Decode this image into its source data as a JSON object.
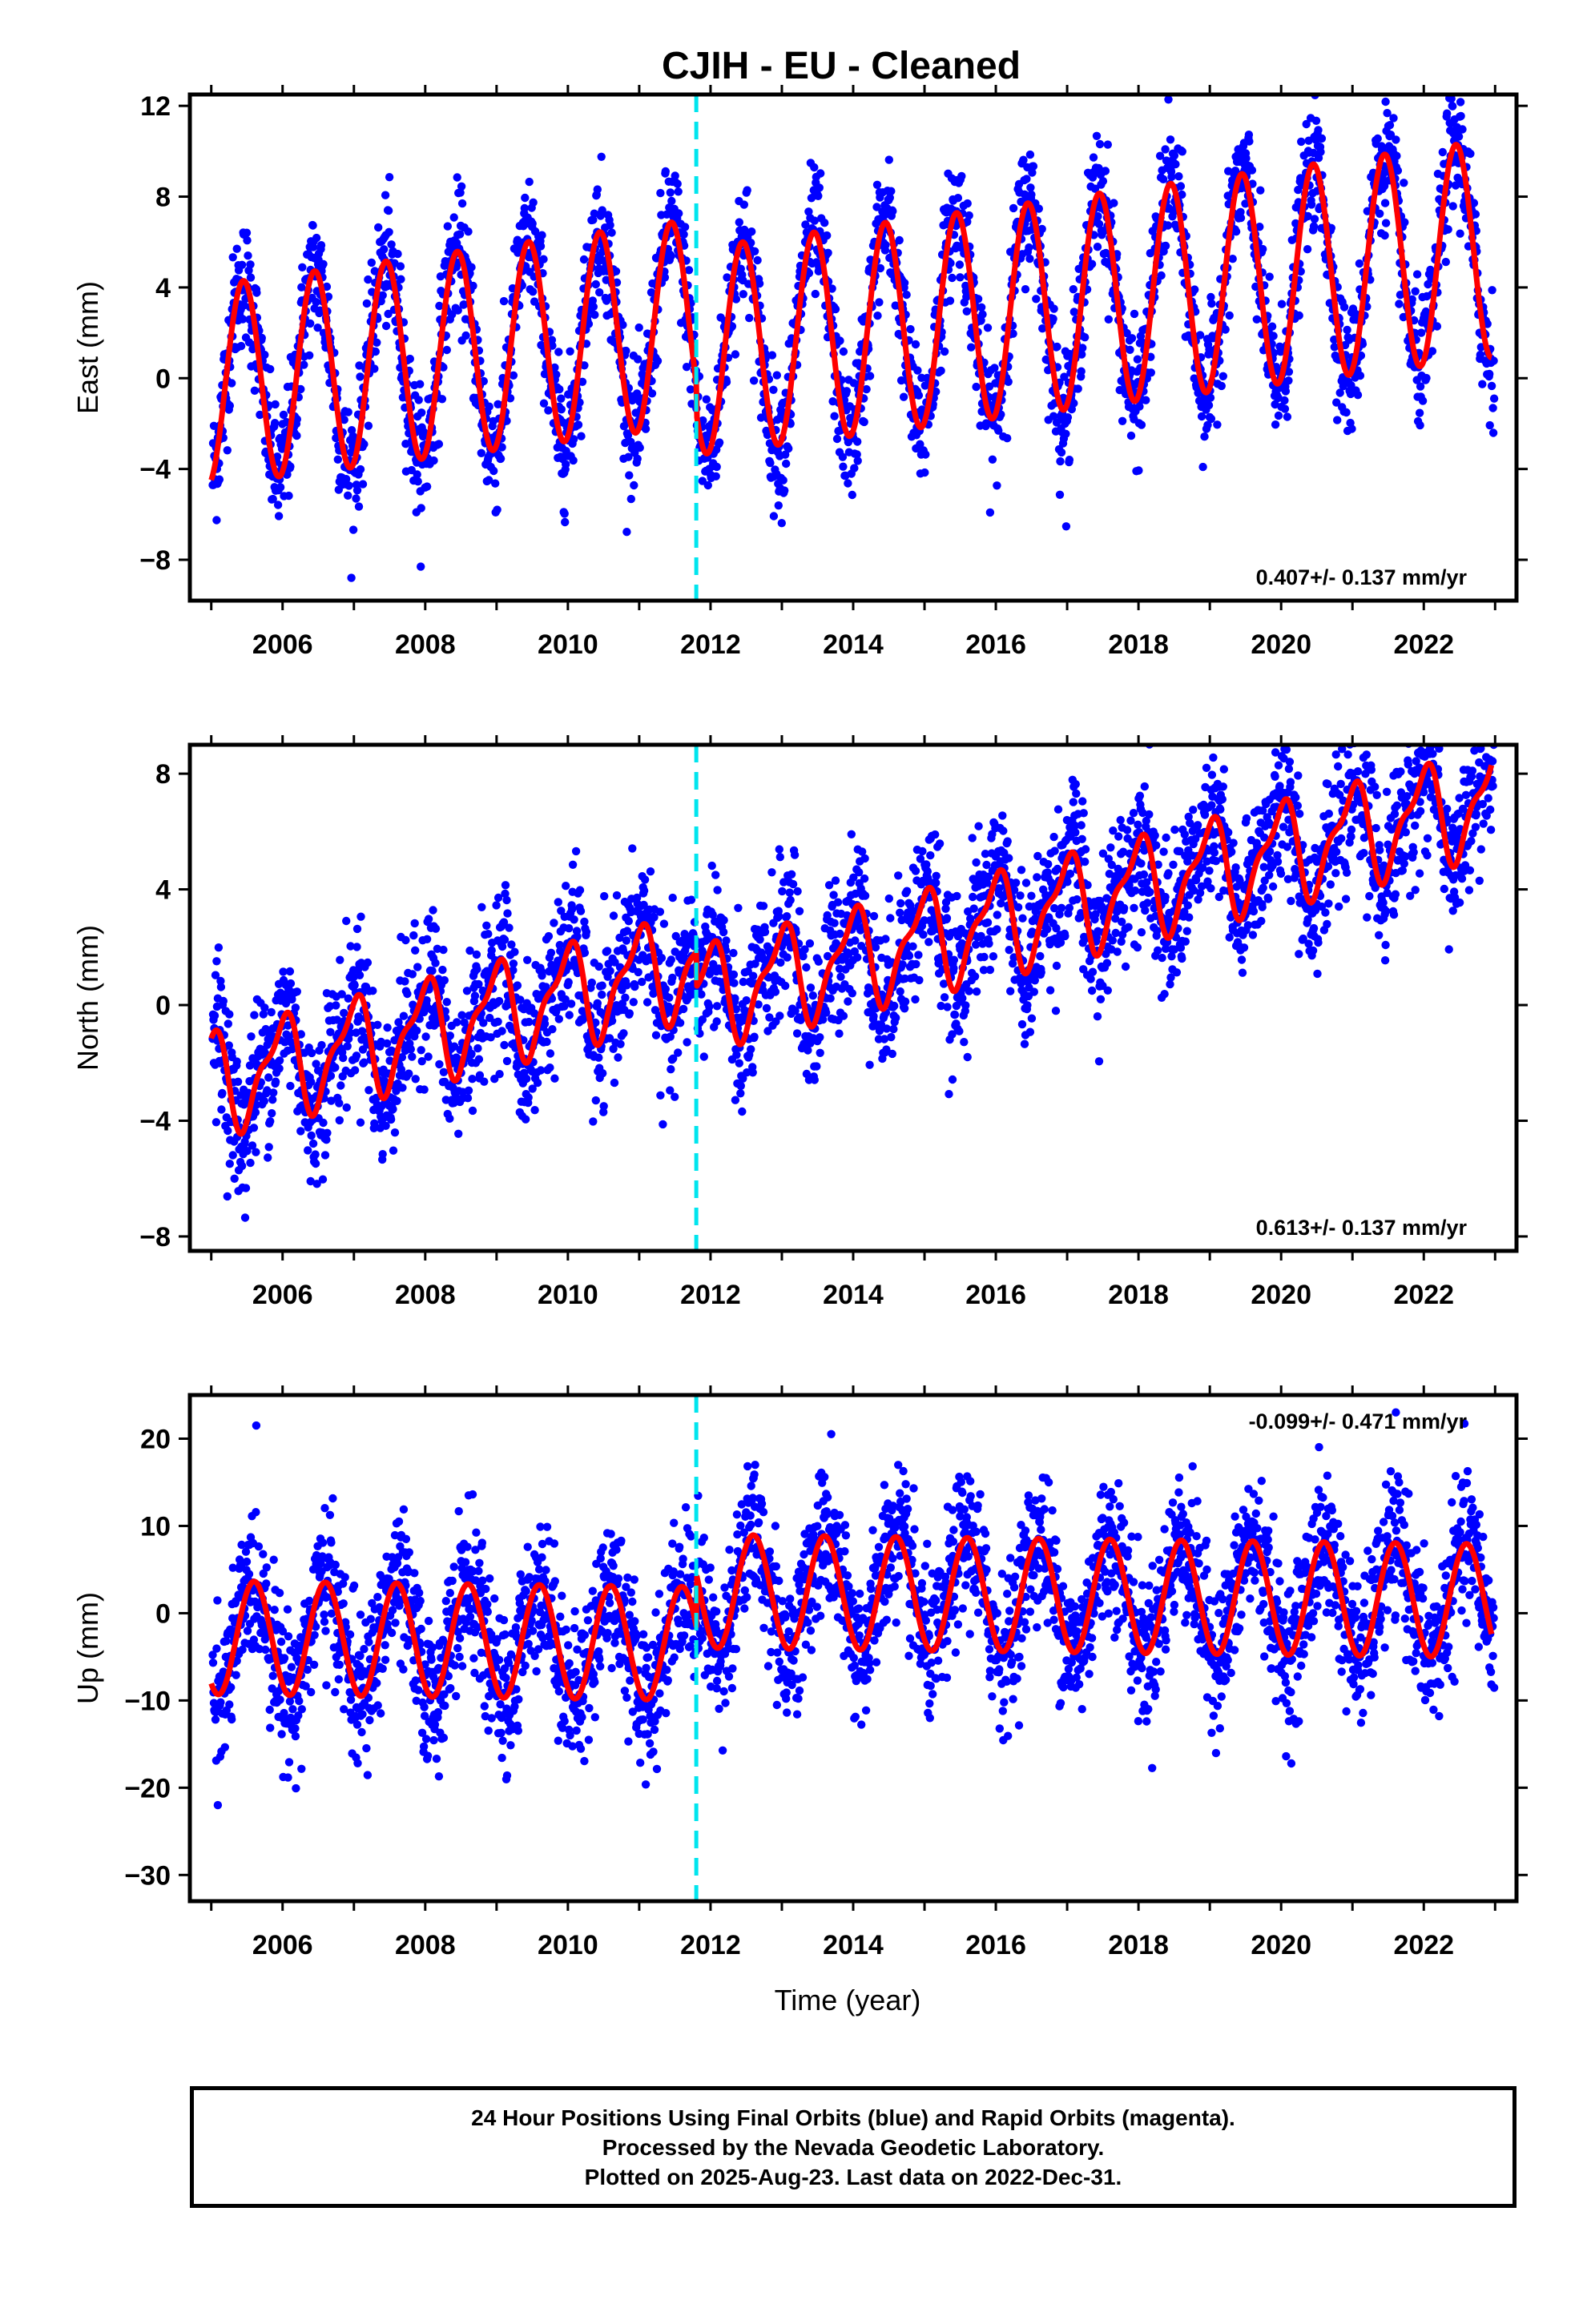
{
  "title": "CJIH  - EU - Cleaned",
  "xlabel": "Time (year)",
  "footer": {
    "line1": "24 Hour Positions Using Final Orbits (blue) and Rapid Orbits (magenta).",
    "line2": "Processed by the Nevada Geodetic Laboratory.",
    "line3": "Plotted on 2025-Aug-23. Last data on 2022-Dec-31."
  },
  "colors": {
    "points": "#0000ff",
    "model": "#ff0000",
    "event_line": "#00e5ee",
    "frame": "#000000"
  },
  "chart_data": [
    {
      "type": "scatter",
      "ylabel": "East (mm)",
      "rate_label": "0.407+/- 0.137 mm/yr",
      "rate_position": "bottom-right",
      "xlim": [
        2004.7,
        2023.3
      ],
      "ylim": [
        -9.8,
        12.5
      ],
      "yticks": [
        -8,
        -4,
        0,
        4,
        8,
        12
      ],
      "xticks": [
        2006,
        2008,
        2010,
        2012,
        2014,
        2016,
        2018,
        2020,
        2022
      ],
      "event_line_x": 2011.8,
      "model": {
        "trend": 0.407,
        "offset_before": -0.3,
        "offset_after": -1.6,
        "step_at": 2011.8,
        "annual_amp_start": 4.4,
        "annual_amp_end": 4.8,
        "annual_phase_peak": 0.45,
        "scatter_sd": 1.4
      },
      "series": [
        {
          "values_shown_as": "daily positions, blue points"
        },
        {
          "values_shown_as": "fitted model, red line"
        }
      ]
    },
    {
      "type": "scatter",
      "ylabel": "North (mm)",
      "rate_label": "0.613+/- 0.137 mm/yr",
      "rate_position": "bottom-right",
      "xlim": [
        2004.7,
        2023.3
      ],
      "ylim": [
        -8.5,
        9.0
      ],
      "yticks": [
        -8,
        -4,
        0,
        4,
        8
      ],
      "xticks": [
        2006,
        2008,
        2010,
        2012,
        2014,
        2016,
        2018,
        2020,
        2022
      ],
      "event_line_x": 2011.8,
      "model": {
        "trend": 0.613,
        "offset_before": -2.7,
        "offset_after": -3.9,
        "step_at": 2011.8,
        "annual_amp_start": 1.6,
        "annual_amp_end": 1.6,
        "annual_phase_peak": 0.98,
        "semiannual_amp": 0.6,
        "scatter_sd": 1.3
      }
    },
    {
      "type": "scatter",
      "ylabel": "Up (mm)",
      "rate_label": "-0.099+/- 0.471 mm/yr",
      "rate_position": "top-right",
      "xlim": [
        2004.7,
        2023.3
      ],
      "ylim": [
        -33,
        25
      ],
      "yticks": [
        -30,
        -20,
        -10,
        0,
        10,
        20
      ],
      "xticks": [
        2006,
        2008,
        2010,
        2012,
        2014,
        2016,
        2018,
        2020,
        2022
      ],
      "event_line_x": 2011.8,
      "model": {
        "trend": -0.099,
        "offset_before": -2.8,
        "offset_after": 3.2,
        "step_at": 2011.8,
        "annual_amp_start": 6.5,
        "annual_amp_end": 6.5,
        "annual_phase_peak": 0.6,
        "scatter_sd": 4.2
      }
    }
  ]
}
